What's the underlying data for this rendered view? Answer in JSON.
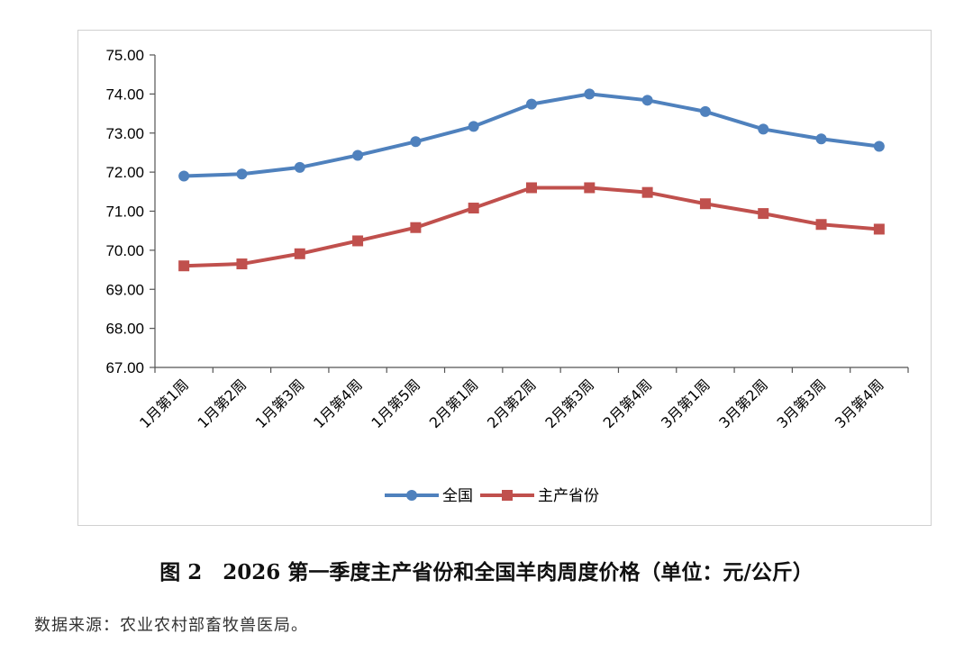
{
  "caption": "图 2　2026 第一季度主产省份和全国羊肉周度价格（单位：元/公斤）",
  "source_note": "数据来源：农业农村部畜牧兽医局。",
  "chart_data": {
    "type": "line",
    "categories": [
      "1月第1周",
      "1月第2周",
      "1月第3周",
      "1月第4周",
      "1月第5周",
      "2月第1周",
      "2月第2周",
      "2月第3周",
      "2月第4周",
      "3月第1周",
      "3月第2周",
      "3月第3周",
      "3月第4周"
    ],
    "series": [
      {
        "name": "全国",
        "color": "#4f81bd",
        "marker": "circle",
        "values": [
          71.9,
          71.95,
          72.12,
          72.43,
          72.78,
          73.17,
          73.74,
          74.0,
          73.84,
          73.55,
          73.1,
          72.85,
          72.66
        ]
      },
      {
        "name": "主产省份",
        "color": "#c0504d",
        "marker": "square",
        "values": [
          69.6,
          69.65,
          69.91,
          70.24,
          70.58,
          71.08,
          71.6,
          71.6,
          71.48,
          71.19,
          70.94,
          70.66,
          70.54
        ]
      }
    ],
    "ylim": [
      67,
      75
    ],
    "yticks": [
      "67.00",
      "68.00",
      "69.00",
      "70.00",
      "71.00",
      "72.00",
      "73.00",
      "74.00",
      "75.00"
    ],
    "legend": "bottom",
    "grid": false
  }
}
